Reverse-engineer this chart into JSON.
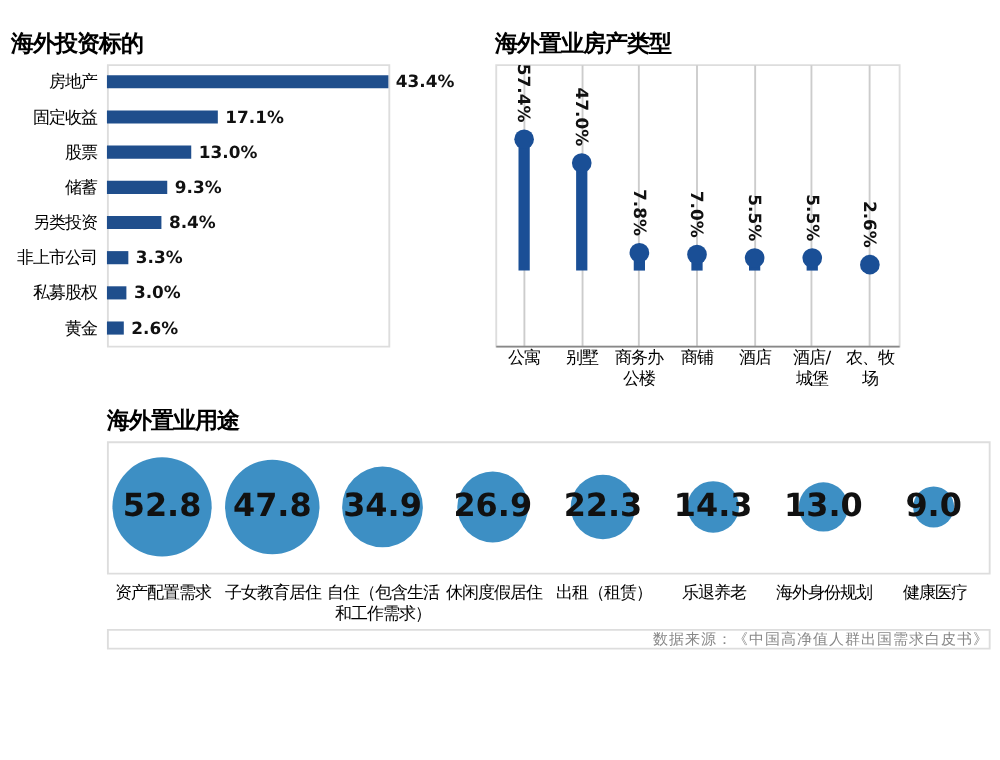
{
  "chart_data": [
    {
      "type": "bar",
      "orientation": "horizontal",
      "title": "海外投资标的",
      "categories": [
        "房地产",
        "固定收益",
        "股票",
        "储蓄",
        "另类投资",
        "非上市公司",
        "私募股权",
        "黄金"
      ],
      "values": [
        43.4,
        17.1,
        13.0,
        9.3,
        8.4,
        3.3,
        3.0,
        2.6
      ],
      "color": "#1f4e8c",
      "value_labels": [
        "43.4%",
        "17.1%",
        "13.0%",
        "9.3%",
        "8.4%",
        "3.3%",
        "3.0%",
        "2.6%"
      ]
    },
    {
      "type": "lollipop",
      "title": "海外置业房产类型",
      "categories": [
        "公寓",
        "别墅",
        "商务办公楼",
        "商铺",
        "酒店",
        "酒店/城堡",
        "农、牧场"
      ],
      "values": [
        57.4,
        47.0,
        7.8,
        7.0,
        5.5,
        5.5,
        2.6
      ],
      "color": "#1a4f96",
      "value_labels": [
        "57.4%",
        "47.0%",
        "7.8%",
        "7.0%",
        "5.5%",
        "5.5%",
        "2.6%"
      ],
      "grid": "x"
    },
    {
      "type": "other",
      "title": "海外置业用途",
      "categories": [
        "资产配置需求",
        "子女教育居住",
        "自住（包含生活和工作需求）",
        "休闲度假居住",
        "出租（租赁）",
        "乐退养老",
        "海外身份规划",
        "健康医疗"
      ],
      "values": [
        52.8,
        47.8,
        34.9,
        26.9,
        22.3,
        14.3,
        13.0,
        9.0
      ],
      "color": "#3d8fc4",
      "value_labels": [
        "52.8",
        "47.8",
        "34.9",
        "26.9",
        "22.3",
        "14.3",
        "13.0",
        "9.0"
      ],
      "annotations": [
        "数据来源：《中国高净值人群出国需求白皮书》"
      ]
    }
  ]
}
